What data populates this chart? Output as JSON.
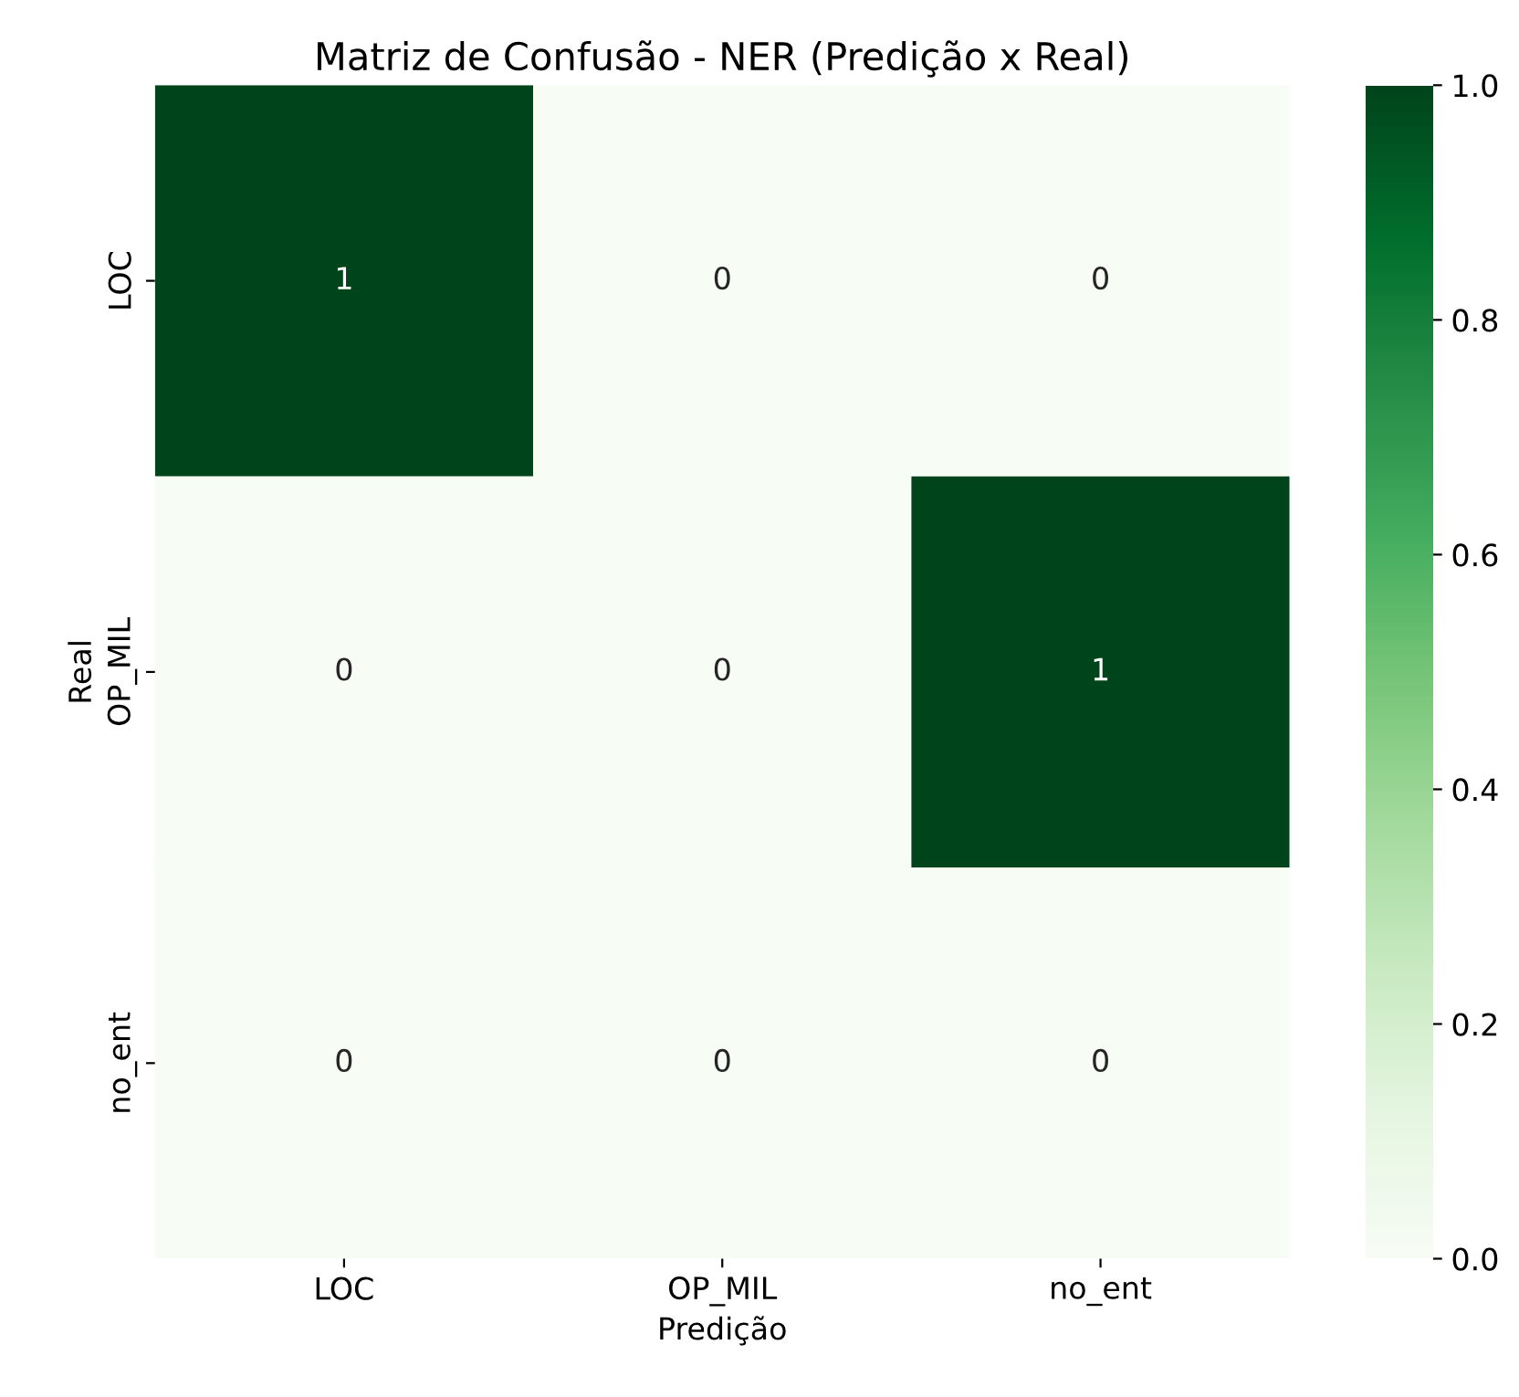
{
  "chart_data": {
    "type": "heatmap",
    "title": "Matriz de Confusão - NER (Predição x Real)",
    "xlabel": "Predição",
    "ylabel": "Real",
    "categories": [
      "LOC",
      "OP_MIL",
      "no_ent"
    ],
    "y_categories": [
      "LOC",
      "OP_MIL",
      "no_ent"
    ],
    "cells": [
      [
        1,
        0,
        0
      ],
      [
        0,
        0,
        1
      ],
      [
        0,
        0,
        0
      ]
    ],
    "data_labels": true,
    "clim": [
      0.0,
      1.0
    ],
    "cticks": [
      {
        "value": 0,
        "label": "0.0"
      },
      0.2,
      0.4,
      0.6,
      0.8,
      {
        "value": 1,
        "label": "1.0"
      }
    ]
  }
}
